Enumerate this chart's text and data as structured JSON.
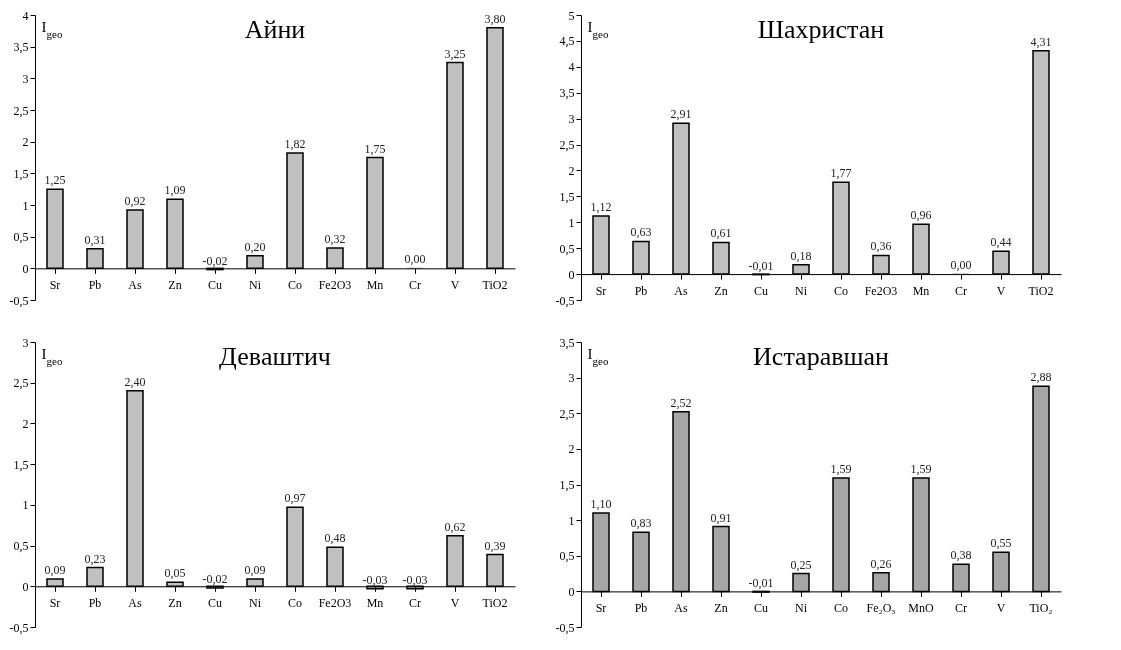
{
  "chart_data": [
    {
      "type": "bar",
      "title": "Айни",
      "ylabel": "I$_{geo}$",
      "categories": [
        "Sr",
        "Pb",
        "As",
        "Zn",
        "Cu",
        "Ni",
        "Co",
        "Fe2O3",
        "Mn",
        "Cr",
        "V",
        "TiO2"
      ],
      "values": [
        1.25,
        0.31,
        0.92,
        1.09,
        -0.02,
        0.2,
        1.82,
        0.32,
        1.75,
        0,
        3.25,
        3.8
      ],
      "value_labels": [
        "1,25",
        "0,31",
        "0,92",
        "1,09",
        "-0,02",
        "0,20",
        "1,82",
        "0,32",
        "1,75",
        "0,00",
        "3,25",
        "3,80"
      ],
      "color": "#c0c0c0",
      "ylim": [
        -0.5,
        4
      ],
      "yticks": [
        {
          "value": -0.5,
          "label": "-0,5"
        },
        0,
        {
          "value": 0.5,
          "label": "0,5"
        },
        1,
        {
          "value": 1.5,
          "label": "1,5"
        },
        2,
        {
          "value": 2.5,
          "label": "2,5"
        },
        3,
        {
          "value": 3.5,
          "label": "3,5"
        },
        4
      ]
    },
    {
      "type": "bar",
      "title": "Шахристан",
      "ylabel": "I$_{geo}$",
      "categories": [
        "Sr",
        "Pb",
        "As",
        "Zn",
        "Cu",
        "Ni",
        "Co",
        "Fe2O3",
        "Mn",
        "Cr",
        "V",
        "TiO2"
      ],
      "values": [
        1.12,
        0.63,
        2.91,
        0.61,
        -0.01,
        0.18,
        1.77,
        0.36,
        0.96,
        0,
        0.44,
        4.31
      ],
      "value_labels": [
        "1,12",
        "0,63",
        "2,91",
        "0,61",
        "-0,01",
        "0,18",
        "1,77",
        "0,36",
        "0,96",
        "0,00",
        "0,44",
        "4,31"
      ],
      "color": "#c0c0c0",
      "ylim": [
        -0.5,
        5
      ],
      "yticks": [
        {
          "value": -0.5,
          "label": "-0,5"
        },
        0,
        {
          "value": 0.5,
          "label": "0,5"
        },
        1,
        {
          "value": 1.5,
          "label": "1,5"
        },
        2,
        {
          "value": 2.5,
          "label": "2,5"
        },
        3,
        {
          "value": 3.5,
          "label": "3,5"
        },
        4,
        {
          "value": 4.5,
          "label": "4,5"
        },
        5
      ]
    },
    {
      "type": "bar",
      "title": "Девaштич",
      "ylabel": "I$_{geo}$",
      "categories": [
        "Sr",
        "Pb",
        "As",
        "Zn",
        "Cu",
        "Ni",
        "Co",
        "Fe2O3",
        "Mn",
        "Cr",
        "V",
        "TiO2"
      ],
      "values": [
        0.09,
        0.23,
        2.4,
        0.05,
        -0.02,
        0.09,
        0.97,
        0.48,
        -0.03,
        -0.03,
        0.62,
        0.39
      ],
      "value_labels": [
        "0,09",
        "0,23",
        "2,40",
        "0,05",
        "-0,02",
        "0,09",
        "0,97",
        "0,48",
        "-0,03",
        "-0,03",
        "0,62",
        "0,39"
      ],
      "color": "#c0c0c0",
      "ylim": [
        -0.5,
        3
      ],
      "yticks": [
        {
          "value": -0.5,
          "label": "-0,5"
        },
        0,
        {
          "value": 0.5,
          "label": "0,5"
        },
        1,
        {
          "value": 1.5,
          "label": "1,5"
        },
        2,
        {
          "value": 2.5,
          "label": "2,5"
        },
        3
      ]
    },
    {
      "type": "bar",
      "title": "Истаравшан",
      "ylabel": "I$_{geo}$",
      "categories": [
        "Sr",
        "Pb",
        "As",
        "Zn",
        "Cu",
        "Ni",
        "Co",
        "Fe₂O₃",
        "MnO",
        "Cr",
        "V",
        "TiO₂"
      ],
      "values": [
        1.1,
        0.83,
        2.52,
        0.91,
        -0.01,
        0.25,
        1.59,
        0.26,
        1.59,
        0.38,
        0.55,
        2.88
      ],
      "value_labels": [
        "1,10",
        "0,83",
        "2,52",
        "0,91",
        "-0,01",
        "0,25",
        "1,59",
        "0,26",
        "1,59",
        "0,38",
        "0,55",
        "2,88"
      ],
      "color": "#a6a6a6",
      "ylim": [
        -0.5,
        3.5
      ],
      "yticks": [
        {
          "value": -0.5,
          "label": "-0,5"
        },
        0,
        {
          "value": 0.5,
          "label": "0,5"
        },
        1,
        {
          "value": 1.5,
          "label": "1,5"
        },
        2,
        {
          "value": 2.5,
          "label": "2,5"
        },
        3,
        {
          "value": 3.5,
          "label": "3,5"
        }
      ]
    }
  ]
}
